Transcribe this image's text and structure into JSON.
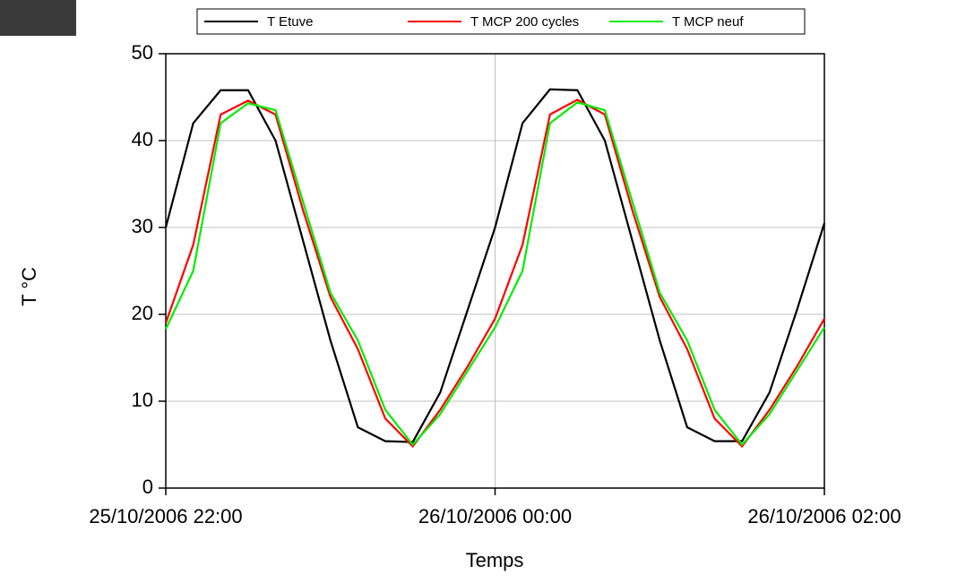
{
  "chart_data": {
    "type": "line",
    "xlabel": "Temps",
    "ylabel": "T °C",
    "x": [
      "25/10/2006 22:00",
      "25/10/2006 22:10",
      "25/10/2006 22:20",
      "25/10/2006 22:30",
      "25/10/2006 22:40",
      "25/10/2006 22:50",
      "25/10/2006 23:00",
      "25/10/2006 23:10",
      "25/10/2006 23:20",
      "25/10/2006 23:30",
      "25/10/2006 23:40",
      "25/10/2006 23:50",
      "26/10/2006 00:00",
      "26/10/2006 00:10",
      "26/10/2006 00:20",
      "26/10/2006 00:30",
      "26/10/2006 00:40",
      "26/10/2006 00:50",
      "26/10/2006 01:00",
      "26/10/2006 01:10",
      "26/10/2006 01:20",
      "26/10/2006 01:30",
      "26/10/2006 01:40",
      "26/10/2006 01:50",
      "26/10/2006 02:00"
    ],
    "series": [
      {
        "name": "T Etuve",
        "color": "#000000",
        "values": [
          30,
          42,
          45.8,
          45.8,
          40,
          28.5,
          17,
          7,
          5.4,
          5.3,
          11,
          20.5,
          30,
          42,
          45.9,
          45.8,
          40,
          28.5,
          17,
          7,
          5.4,
          5.4,
          11,
          20.5,
          30.5
        ]
      },
      {
        "name": "T MCP 200 cycles",
        "color": "#ff0000",
        "values": [
          19,
          28,
          43,
          44.6,
          43,
          32,
          22,
          16,
          8,
          4.8,
          9,
          14,
          19.5,
          28,
          43,
          44.7,
          43,
          32,
          22,
          16,
          8,
          4.8,
          9,
          14,
          19.5
        ]
      },
      {
        "name": "T MCP neuf",
        "color": "#00ee00",
        "values": [
          18.3,
          25,
          42,
          44.3,
          43.5,
          33,
          22.5,
          17,
          9,
          5,
          8.5,
          13.5,
          18.5,
          25,
          42,
          44.4,
          43.5,
          33,
          22.5,
          17,
          9,
          5,
          8.5,
          13.5,
          18.5
        ]
      }
    ],
    "xlim": [
      "25/10/2006 22:00",
      "26/10/2006 02:00"
    ],
    "xticks": [
      "25/10/2006 22:00",
      "26/10/2006 00:00",
      "26/10/2006 02:00"
    ],
    "ylim": [
      0,
      50
    ],
    "yticks": [
      0,
      10,
      20,
      30,
      40,
      50
    ],
    "grid": true
  }
}
